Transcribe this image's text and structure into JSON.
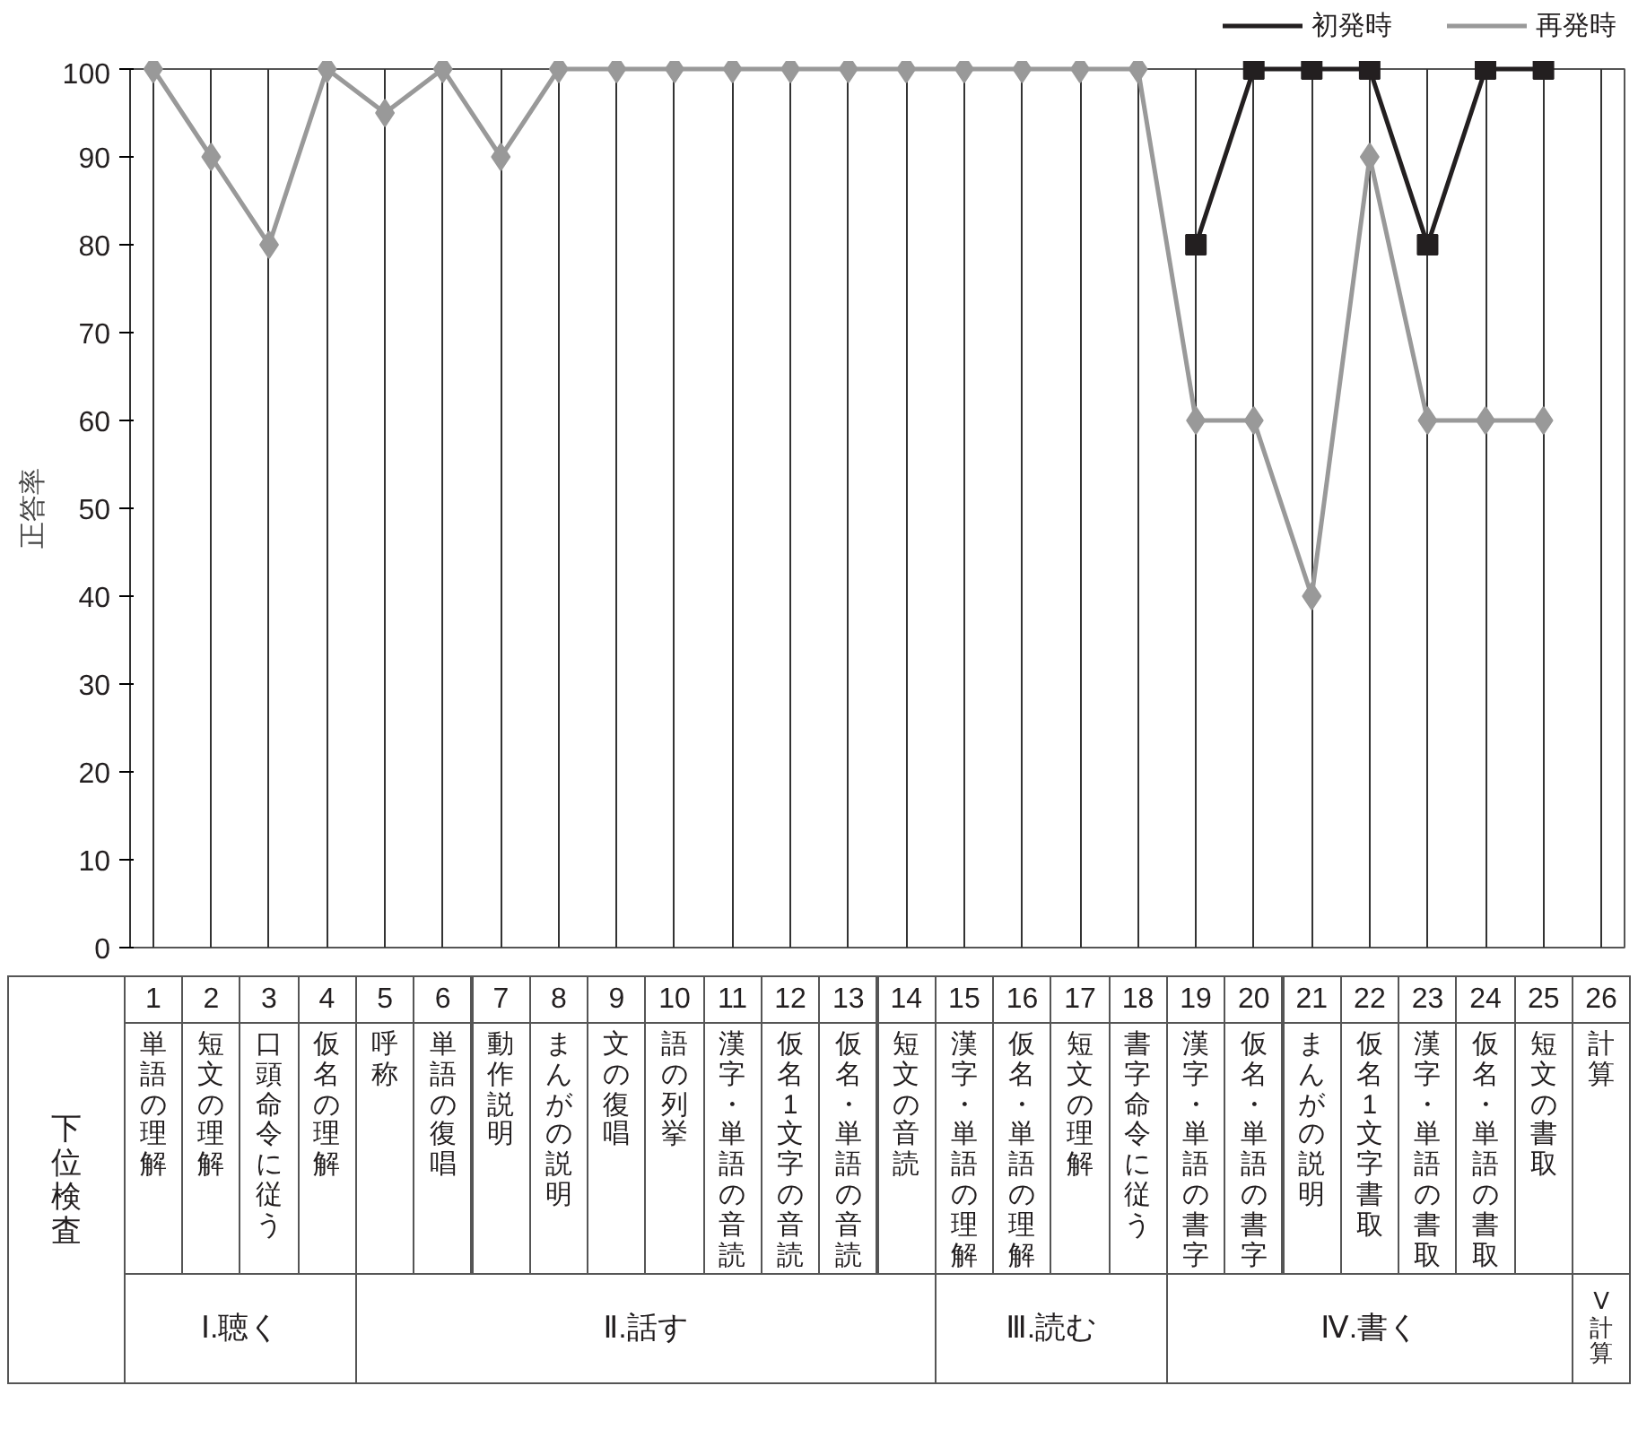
{
  "chart_data": {
    "type": "line",
    "categories": [
      "1\n単語の理解",
      "2\n短文の理解",
      "3\n口頭命令に従う",
      "4\n仮名の理解",
      "5\n呼称",
      "6\n単語の復唱",
      "7\n動作説明",
      "8\nまんがの説明",
      "9\n文の復唱",
      "10\n語の列挙",
      "11\n漢字・単語の音読",
      "12\n仮名1文字の音読",
      "13\n仮名・単語の音読",
      "14\n短文の音読",
      "15\n漢字・単語の理解",
      "16\n仮名・単語の理解",
      "17\n短文の理解",
      "18\n書字命令に従う",
      "19\n漢字・単語の書字",
      "20\n仮名・単語の書字",
      "21\nまんがの説明",
      "22\n仮名1文字書取",
      "23\n漢字・単語の書取",
      "24\n仮名・単語の書取",
      "25\n短文の書取",
      "26\n計算"
    ],
    "series": [
      {
        "name": "初発時",
        "color": "#231f20",
        "marker": "square",
        "values": [
          null,
          null,
          null,
          null,
          null,
          null,
          null,
          null,
          null,
          null,
          null,
          null,
          null,
          null,
          null,
          null,
          null,
          null,
          80,
          100,
          100,
          100,
          80,
          100,
          100,
          null
        ]
      },
      {
        "name": "再発時",
        "color": "#999999",
        "marker": "diamond",
        "values": [
          100,
          90,
          80,
          100,
          95,
          100,
          90,
          100,
          100,
          100,
          100,
          100,
          100,
          100,
          100,
          100,
          100,
          100,
          60,
          60,
          40,
          90,
          60,
          60,
          60,
          null
        ]
      }
    ],
    "ylabel": "正答率",
    "xlabel": "下位検査",
    "ylim": [
      0,
      100
    ],
    "yticks": [
      0,
      10,
      20,
      30,
      40,
      50,
      60,
      70,
      80,
      90,
      100
    ],
    "grid": "x",
    "legend": "top right",
    "annotations": [
      "Ⅰ.聴く",
      "Ⅱ.話す",
      "Ⅲ.読む",
      "Ⅳ.書く",
      "Ⅴ計算"
    ]
  }
}
